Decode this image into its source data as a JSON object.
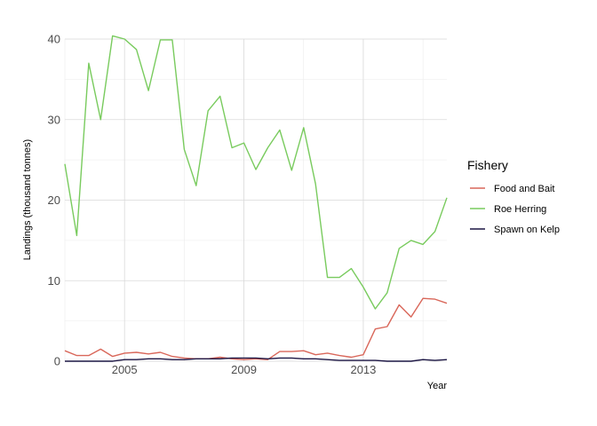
{
  "chart_data": {
    "type": "line",
    "xlabel": "Year",
    "ylabel": "Landings (thousand tonnes)",
    "xlim": [
      2003,
      2015.8
    ],
    "ylim": [
      0,
      40
    ],
    "x_ticks": [
      2005,
      2009,
      2013
    ],
    "x_tick_labels": [
      "2005",
      "2009",
      "2013"
    ],
    "y_ticks": [
      0,
      10,
      20,
      30,
      40
    ],
    "y_tick_labels": [
      "0",
      "10",
      "20",
      "30",
      "40"
    ],
    "grid": true,
    "legend": {
      "title": "Fishery",
      "position": "right"
    },
    "x": [
      2003.0,
      2003.4,
      2003.8,
      2004.2,
      2004.6,
      2005.0,
      2005.4,
      2005.8,
      2006.2,
      2006.6,
      2007.0,
      2007.4,
      2007.8,
      2008.2,
      2008.6,
      2009.0,
      2009.4,
      2009.8,
      2010.2,
      2010.6,
      2011.0,
      2011.4,
      2011.8,
      2012.2,
      2012.6,
      2013.0,
      2013.4,
      2013.8,
      2014.2,
      2014.6,
      2015.0,
      2015.4,
      2015.8
    ],
    "series": [
      {
        "name": "Food and Bait",
        "color": "#d9675a",
        "values": [
          1.3,
          0.7,
          0.7,
          1.5,
          0.6,
          1.0,
          1.1,
          0.9,
          1.1,
          0.6,
          0.4,
          0.3,
          0.3,
          0.5,
          0.3,
          0.2,
          0.3,
          0.2,
          1.2,
          1.2,
          1.3,
          0.8,
          1.0,
          0.7,
          0.5,
          0.8,
          4.0,
          4.3,
          7.0,
          5.5,
          7.8,
          7.7,
          7.2
        ]
      },
      {
        "name": "Roe Herring",
        "color": "#79cb5e",
        "values": [
          24.5,
          15.6,
          37.0,
          30.0,
          40.4,
          40.0,
          38.7,
          33.6,
          39.9,
          39.9,
          26.3,
          21.8,
          31.1,
          32.9,
          26.5,
          27.1,
          23.8,
          26.5,
          28.7,
          23.7,
          29.0,
          22.0,
          10.4,
          10.4,
          11.5,
          9.2,
          6.5,
          8.5,
          14.0,
          15.0,
          14.5,
          16.1,
          20.3
        ]
      },
      {
        "name": "Spawn on Kelp",
        "color": "#1c1644",
        "values": [
          0.0,
          0.0,
          0.0,
          0.0,
          0.0,
          0.2,
          0.2,
          0.3,
          0.3,
          0.2,
          0.2,
          0.3,
          0.3,
          0.3,
          0.4,
          0.4,
          0.4,
          0.3,
          0.4,
          0.4,
          0.3,
          0.3,
          0.2,
          0.1,
          0.1,
          0.1,
          0.1,
          0.0,
          0.0,
          0.0,
          0.2,
          0.1,
          0.2
        ]
      }
    ]
  }
}
